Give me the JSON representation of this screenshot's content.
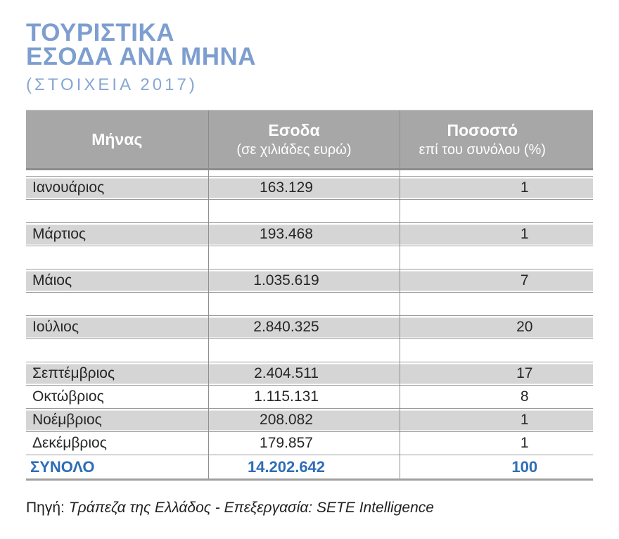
{
  "title": {
    "line1": "ΤΟΥΡΙΣΤΙΚΑ",
    "line2": "ΕΣΟΔΑ ΑΝΑ ΜΗΝΑ",
    "subtitle": "(ΣΤΟΙΧΕΙΑ 2017)"
  },
  "colors": {
    "title_blue": "#7d9ecf",
    "subtitle_blue": "#86a7d3",
    "header_gray": "#a7a7a7",
    "row_gray": "#d5d5d5",
    "line_gray": "#9b9b9b",
    "total_blue": "#2e6db6"
  },
  "table": {
    "columns": [
      {
        "title": "Μήνας",
        "subtitle": ""
      },
      {
        "title": "Εσοδα",
        "subtitle": "(σε χιλιάδες ευρώ)"
      },
      {
        "title": "Ποσοστό",
        "subtitle": "επί του συνόλου (%)"
      }
    ],
    "rows": [
      {
        "month": "Ιανουάριος",
        "revenue": "163.129",
        "percent": "1",
        "shaded": true
      },
      {
        "blank": true
      },
      {
        "month": "Μάρτιος",
        "revenue": "193.468",
        "percent": "1",
        "shaded": true
      },
      {
        "blank": true
      },
      {
        "month": "Μάιος",
        "revenue": "1.035.619",
        "percent": "7",
        "shaded": true
      },
      {
        "blank": true
      },
      {
        "month": "Ιούλιος",
        "revenue": "2.840.325",
        "percent": "20",
        "shaded": true
      },
      {
        "blank": true
      },
      {
        "month": "Σεπτέμβριος",
        "revenue": "2.404.511",
        "percent": "17",
        "shaded": true
      },
      {
        "month": "Οκτώβριος",
        "revenue": "1.115.131",
        "percent": "8",
        "shaded": false
      },
      {
        "month": "Νοέμβριος",
        "revenue": "208.082",
        "percent": "1",
        "shaded": true
      },
      {
        "month": "Δεκέμβριος",
        "revenue": "179.857",
        "percent": "1",
        "shaded": false
      }
    ],
    "total": {
      "label": "ΣΥΝΟΛΟ",
      "revenue": "14.202.642",
      "percent": "100"
    }
  },
  "footer": {
    "prefix": "Πηγή:",
    "text": "Τράπεζα της Ελλάδος - Επεξεργασία: SETE Intelligence"
  },
  "chart_data": {
    "type": "table",
    "title": "ΤΟΥΡΙΣΤΙΚΑ ΕΣΟΔΑ ΑΝΑ ΜΗΝΑ (ΣΤΟΙΧΕΙΑ 2017)",
    "columns": [
      "Μήνας",
      "Εσοδα (σε χιλιάδες ευρώ)",
      "Ποσοστό επί του συνόλου (%)"
    ],
    "categories": [
      "Ιανουάριος",
      "Μάρτιος",
      "Μάιος",
      "Ιούλιος",
      "Σεπτέμβριος",
      "Οκτώβριος",
      "Νοέμβριος",
      "Δεκέμβριος"
    ],
    "series": [
      {
        "name": "Εσοδα (σε χιλιάδες ευρώ)",
        "values": [
          163129,
          193468,
          1035619,
          2840325,
          2404511,
          1115131,
          208082,
          179857
        ]
      },
      {
        "name": "Ποσοστό επί του συνόλου (%)",
        "values": [
          1,
          1,
          7,
          20,
          17,
          8,
          1,
          1
        ]
      }
    ],
    "total": {
      "label": "ΣΥΝΟΛΟ",
      "revenue_thousands_eur": 14202642,
      "percent": 100
    },
    "source": "Πηγή: Τράπεζα της Ελλάδος - Επεξεργασία: SETE Intelligence"
  }
}
